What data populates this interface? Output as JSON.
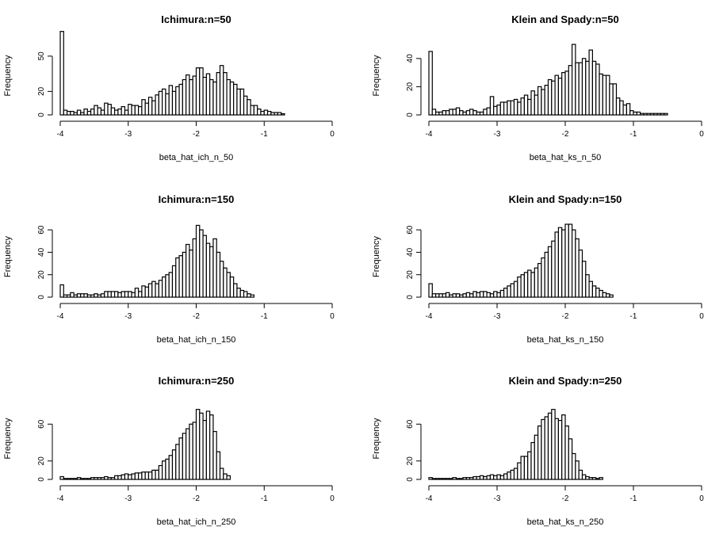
{
  "chart_data": [
    {
      "type": "bar",
      "title": "Ichimura:n=50",
      "xlabel": "beta_hat_ich_n_50",
      "ylabel": "Frequency",
      "xlim": [
        -4,
        0
      ],
      "ylim": [
        0,
        60
      ],
      "xticks": [
        "-4",
        "-3",
        "-2",
        "-1",
        "0"
      ],
      "yticks": [
        "0",
        "20",
        "50"
      ],
      "ytick_values": [
        0,
        20,
        50
      ],
      "bin_start": -4.0,
      "bin_width": 0.05,
      "values": [
        71,
        4,
        3,
        3,
        2,
        4,
        2,
        5,
        3,
        5,
        8,
        6,
        4,
        10,
        9,
        6,
        4,
        5,
        7,
        4,
        9,
        8,
        8,
        7,
        13,
        10,
        15,
        12,
        17,
        20,
        22,
        18,
        25,
        20,
        24,
        26,
        30,
        34,
        30,
        33,
        40,
        40,
        32,
        35,
        30,
        28,
        36,
        42,
        36,
        30,
        28,
        26,
        22,
        22,
        16,
        13,
        8,
        8,
        5,
        3,
        4,
        3,
        2,
        2,
        2,
        1
      ]
    },
    {
      "type": "bar",
      "title": "Klein and Spady:n=50",
      "xlabel": "beta_hat_ks_n_50",
      "ylabel": "Frequency",
      "xlim": [
        -4,
        0
      ],
      "ylim": [
        0,
        50
      ],
      "xticks": [
        "-4",
        "-3",
        "-2",
        "-1",
        "0"
      ],
      "yticks": [
        "0",
        "20",
        "40"
      ],
      "ytick_values": [
        0,
        20,
        40
      ],
      "bin_start": -4.0,
      "bin_width": 0.05,
      "values": [
        45,
        4,
        2,
        2,
        3,
        3,
        4,
        4,
        5,
        3,
        2,
        3,
        4,
        3,
        2,
        2,
        4,
        5,
        13,
        6,
        7,
        9,
        9,
        10,
        10,
        11,
        9,
        12,
        14,
        11,
        17,
        14,
        20,
        18,
        21,
        25,
        24,
        28,
        26,
        30,
        31,
        35,
        50,
        37,
        37,
        40,
        38,
        46,
        38,
        36,
        29,
        28,
        28,
        22,
        22,
        12,
        10,
        7,
        8,
        3,
        2,
        2,
        1,
        1,
        1,
        1,
        1,
        1,
        1,
        1
      ]
    },
    {
      "type": "bar",
      "title": "Ichimura:n=150",
      "xlabel": "beta_hat_ich_n_150",
      "ylabel": "Frequency",
      "xlim": [
        -4,
        0
      ],
      "ylim": [
        0,
        65
      ],
      "xticks": [
        "-4",
        "-3",
        "-2",
        "-1",
        "0"
      ],
      "yticks": [
        "0",
        "20",
        "40",
        "60"
      ],
      "ytick_values": [
        0,
        20,
        40,
        60
      ],
      "bin_start": -4.0,
      "bin_width": 0.05,
      "values": [
        11,
        2,
        2,
        4,
        2,
        3,
        3,
        3,
        2,
        2,
        3,
        2,
        3,
        5,
        5,
        5,
        5,
        4,
        5,
        5,
        5,
        4,
        8,
        5,
        10,
        9,
        12,
        14,
        12,
        15,
        18,
        20,
        22,
        28,
        35,
        37,
        40,
        47,
        42,
        52,
        64,
        60,
        55,
        48,
        45,
        52,
        40,
        32,
        26,
        22,
        18,
        12,
        8,
        6,
        5,
        3,
        2
      ]
    },
    {
      "type": "bar",
      "title": "Klein and Spady:n=150",
      "xlabel": "beta_hat_ks_n_150",
      "ylabel": "Frequency",
      "xlim": [
        -4,
        0
      ],
      "ylim": [
        0,
        65
      ],
      "xticks": [
        "-4",
        "-3",
        "-2",
        "-1",
        "0"
      ],
      "yticks": [
        "0",
        "20",
        "40",
        "60"
      ],
      "ytick_values": [
        0,
        20,
        40,
        60
      ],
      "bin_start": -4.0,
      "bin_width": 0.05,
      "values": [
        12,
        3,
        3,
        3,
        3,
        4,
        2,
        3,
        3,
        2,
        3,
        4,
        3,
        5,
        4,
        5,
        5,
        4,
        3,
        5,
        4,
        6,
        8,
        10,
        12,
        14,
        18,
        20,
        22,
        24,
        22,
        26,
        30,
        35,
        40,
        45,
        50,
        58,
        62,
        60,
        65,
        65,
        60,
        52,
        42,
        32,
        20,
        14,
        10,
        8,
        6,
        4,
        3,
        2
      ]
    },
    {
      "type": "bar",
      "title": "Ichimura:n=250",
      "xlabel": "beta_hat_ich_n_250",
      "ylabel": "Frequency",
      "xlim": [
        -4,
        0
      ],
      "ylim": [
        0,
        80
      ],
      "xticks": [
        "-4",
        "-3",
        "-2",
        "-1",
        "0"
      ],
      "yticks": [
        "0",
        "20",
        "60"
      ],
      "ytick_values": [
        0,
        20,
        60
      ],
      "bin_start": -4.0,
      "bin_width": 0.05,
      "values": [
        3,
        1,
        1,
        1,
        1,
        2,
        1,
        1,
        1,
        2,
        2,
        2,
        2,
        3,
        2,
        2,
        4,
        4,
        5,
        6,
        5,
        6,
        7,
        7,
        8,
        8,
        8,
        10,
        10,
        15,
        20,
        22,
        26,
        32,
        38,
        45,
        50,
        55,
        60,
        62,
        76,
        72,
        64,
        74,
        70,
        52,
        30,
        12,
        6,
        4
      ]
    },
    {
      "type": "bar",
      "title": "Klein and Spady:n=250",
      "xlabel": "beta_hat_ks_n_250",
      "ylabel": "Frequency",
      "xlim": [
        -4,
        0
      ],
      "ylim": [
        0,
        80
      ],
      "xticks": [
        "-4",
        "-3",
        "-2",
        "-1",
        "0"
      ],
      "yticks": [
        "0",
        "20",
        "60"
      ],
      "ytick_values": [
        0,
        20,
        60
      ],
      "bin_start": -4.0,
      "bin_width": 0.05,
      "values": [
        2,
        1,
        1,
        1,
        1,
        1,
        1,
        2,
        1,
        1,
        2,
        2,
        2,
        3,
        3,
        4,
        3,
        4,
        5,
        4,
        5,
        4,
        6,
        8,
        10,
        12,
        18,
        25,
        25,
        30,
        40,
        48,
        58,
        65,
        68,
        72,
        76,
        66,
        64,
        70,
        58,
        44,
        28,
        20,
        10,
        5,
        3,
        2,
        2,
        1,
        2
      ]
    }
  ]
}
